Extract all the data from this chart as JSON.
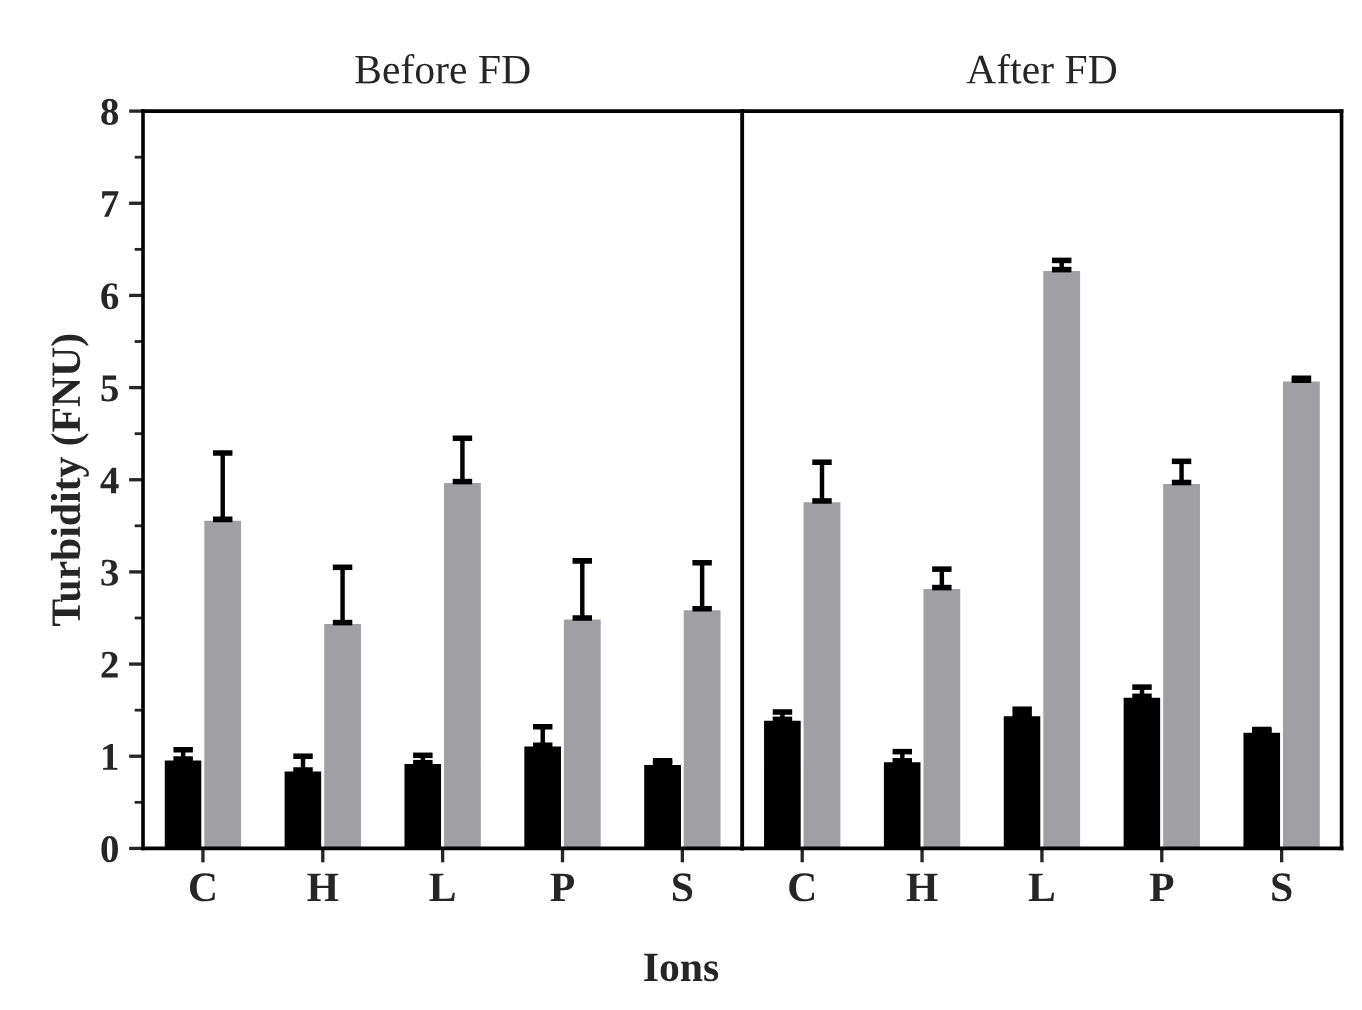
{
  "chart_data": [
    {
      "type": "bar",
      "title": "Before FD",
      "xlabel": "Ions",
      "ylabel": "Turbidity (FNU)",
      "categories": [
        "C",
        "H",
        "L",
        "P",
        "S"
      ],
      "ylim": [
        0,
        8
      ],
      "yticks": [
        0,
        1,
        2,
        3,
        4,
        5,
        6,
        7,
        8
      ],
      "series": [
        {
          "color": "#000000",
          "values": [
            0.97,
            0.85,
            0.93,
            1.12,
            0.92
          ],
          "errors": [
            [
              0.97,
              1.07
            ],
            [
              0.85,
              1.0
            ],
            [
              0.93,
              1.01
            ],
            [
              1.12,
              1.32
            ],
            [
              0.92,
              0.95
            ]
          ]
        },
        {
          "color": "#a0a0a4",
          "values": [
            3.57,
            2.45,
            3.98,
            2.5,
            2.6
          ],
          "errors": [
            [
              3.57,
              4.29
            ],
            [
              2.45,
              3.05
            ],
            [
              3.98,
              4.45
            ],
            [
              2.5,
              3.12
            ],
            [
              2.6,
              3.1
            ]
          ]
        }
      ]
    },
    {
      "type": "bar",
      "title": "After FD",
      "categories": [
        "C",
        "H",
        "L",
        "P",
        "S"
      ],
      "ylim": [
        0,
        8
      ],
      "tick_labels": "x",
      "series": [
        {
          "color": "#000000",
          "values": [
            1.4,
            0.95,
            1.45,
            1.65,
            1.27
          ],
          "errors": [
            [
              1.4,
              1.48
            ],
            [
              0.95,
              1.05
            ],
            [
              1.45,
              1.51
            ],
            [
              1.65,
              1.75
            ],
            [
              1.27,
              1.29
            ]
          ]
        },
        {
          "color": "#a0a0a4",
          "values": [
            3.77,
            2.83,
            6.28,
            3.97,
            5.08
          ],
          "errors": [
            [
              3.77,
              4.19
            ],
            [
              2.83,
              3.03
            ],
            [
              6.28,
              6.38
            ],
            [
              3.97,
              4.2
            ],
            [
              5.08,
              5.1
            ]
          ]
        }
      ]
    }
  ]
}
